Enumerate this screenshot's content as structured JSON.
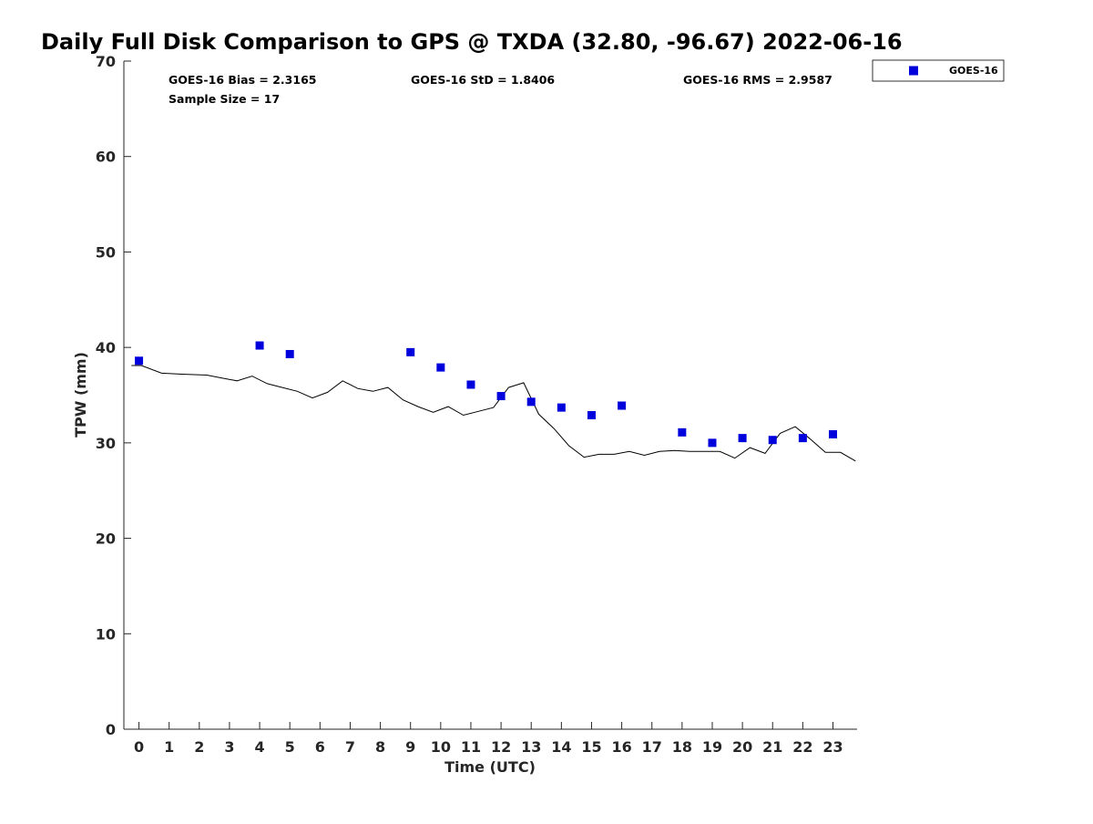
{
  "chart_data": {
    "type": "scatter",
    "title": "Daily Full Disk Comparison to GPS @ TXDA (32.80, -96.67) 2022-06-16",
    "xlabel": "Time (UTC)",
    "ylabel": "TPW (mm)",
    "xlim": [
      -0.5,
      23.8
    ],
    "ylim": [
      0,
      70
    ],
    "x_ticks": [
      0,
      1,
      2,
      3,
      4,
      5,
      6,
      7,
      8,
      9,
      10,
      11,
      12,
      13,
      14,
      15,
      16,
      17,
      18,
      19,
      20,
      21,
      22,
      23
    ],
    "y_ticks": [
      0,
      10,
      20,
      30,
      40,
      50,
      60,
      70
    ],
    "grid": false,
    "legend_position": "outside-top-right",
    "stats": {
      "bias": "GOES-16 Bias = 2.3165",
      "std": "GOES-16 StD = 1.8406",
      "rms": "GOES-16 RMS = 2.9587",
      "sample": "Sample Size = 17"
    },
    "series": [
      {
        "name": "GOES-16",
        "kind": "scatter",
        "marker": "square",
        "color": "#0000dd",
        "x": [
          0,
          4,
          5,
          9,
          10,
          11,
          12,
          13,
          14,
          15,
          16,
          18,
          19,
          20,
          21,
          22,
          23
        ],
        "y": [
          38.6,
          40.2,
          39.3,
          39.5,
          37.9,
          36.1,
          34.9,
          34.3,
          33.7,
          32.9,
          33.9,
          31.1,
          30.0,
          30.5,
          30.3,
          30.5,
          30.9
        ]
      },
      {
        "kind": "line",
        "color": "#000000",
        "x": [
          -0.25,
          0.08,
          0.75,
          1.42,
          2.25,
          2.75,
          3.25,
          3.75,
          4.25,
          4.75,
          5.25,
          5.75,
          6.25,
          6.75,
          7.25,
          7.75,
          8.25,
          8.75,
          9.25,
          9.75,
          10.25,
          10.75,
          11.25,
          11.75,
          12.25,
          12.75,
          13.25,
          13.75,
          14.25,
          14.75,
          15.25,
          15.75,
          16.25,
          16.75,
          17.25,
          17.75,
          18.25,
          18.75,
          19.25,
          19.75,
          20.25,
          20.75,
          21.25,
          21.75,
          22.25,
          22.75,
          23.25,
          23.75
        ],
        "y": [
          38.1,
          38.1,
          37.3,
          37.2,
          37.1,
          36.8,
          36.5,
          37.0,
          36.2,
          35.8,
          35.4,
          34.7,
          35.3,
          36.5,
          35.7,
          35.4,
          35.8,
          34.5,
          33.8,
          33.2,
          33.8,
          32.9,
          33.3,
          33.7,
          35.8,
          36.3,
          33.0,
          31.5,
          29.7,
          28.5,
          28.8,
          28.8,
          29.1,
          28.7,
          29.1,
          29.2,
          29.1,
          29.1,
          29.1,
          28.4,
          29.5,
          28.9,
          31.0,
          31.7,
          30.4,
          29.0,
          29.0,
          28.1
        ]
      }
    ]
  }
}
